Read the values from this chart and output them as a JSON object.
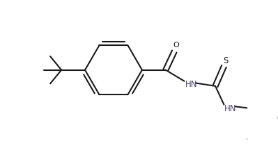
{
  "bg_color": "#ffffff",
  "line_color": "#1a1a1a",
  "label_color_hn": "#4a3f6b",
  "line_width": 1.5,
  "figsize": [
    3.99,
    2.13
  ],
  "dpi": 100,
  "xlim": [
    0,
    399
  ],
  "ylim": [
    0,
    213
  ]
}
